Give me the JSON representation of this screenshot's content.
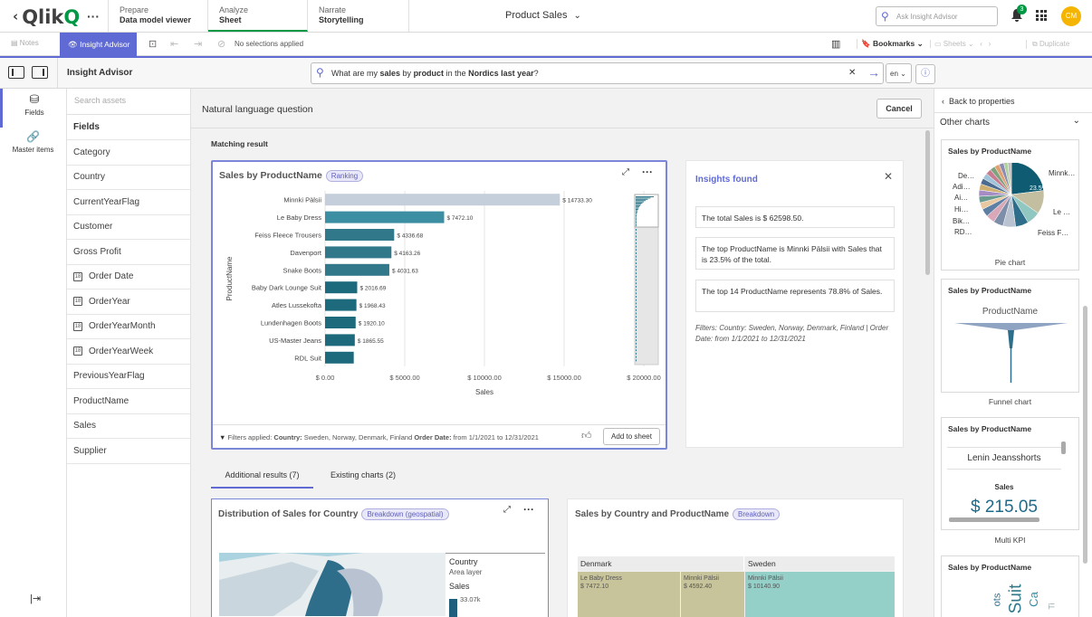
{
  "top": {
    "logo_text": "Qlik",
    "logo_q": "Q",
    "more_label": "···",
    "tabs": [
      {
        "label": "Prepare",
        "sub": "Data model viewer"
      },
      {
        "label": "Analyze",
        "sub": "Sheet"
      },
      {
        "label": "Narrate",
        "sub": "Storytelling"
      }
    ],
    "app_title": "Product Sales",
    "search_placeholder": "Ask Insight Advisor",
    "notification_count": "3",
    "avatar_initials": "CM"
  },
  "toolbar": {
    "notes": "Notes",
    "insight_advisor": "Insight Advisor",
    "no_selections": "No selections applied",
    "bookmarks": "Bookmarks",
    "sheets": "Sheets",
    "duplicate": "Duplicate"
  },
  "ia_bar": {
    "title": "Insight Advisor",
    "query_prefix": "What are my ",
    "query_b1": "sales",
    "query_mid1": " by ",
    "query_b2": "product",
    "query_mid2": " in the ",
    "query_b3": "Nordics",
    "query_mid3": " ",
    "query_b4": "last year",
    "query_suffix": "?",
    "lang": "en"
  },
  "rail": {
    "fields": "Fields",
    "master_items": "Master items"
  },
  "assets": {
    "search_placeholder": "Search assets",
    "header": "Fields",
    "items": [
      {
        "label": "Category",
        "date": false
      },
      {
        "label": "Country",
        "date": false
      },
      {
        "label": "CurrentYearFlag",
        "date": false
      },
      {
        "label": "Customer",
        "date": false
      },
      {
        "label": "Gross Profit",
        "date": false
      },
      {
        "label": "Order Date",
        "date": true
      },
      {
        "label": "OrderYear",
        "date": true
      },
      {
        "label": "OrderYearMonth",
        "date": true
      },
      {
        "label": "OrderYearWeek",
        "date": true
      },
      {
        "label": "PreviousYearFlag",
        "date": false
      },
      {
        "label": "ProductName",
        "date": false
      },
      {
        "label": "Sales",
        "date": false
      },
      {
        "label": "Supplier",
        "date": false
      }
    ]
  },
  "main": {
    "nlq_title": "Natural language question",
    "cancel": "Cancel",
    "matching": "Matching result",
    "chart_title": "Sales by ProductName",
    "chart_badge": "Ranking",
    "filters_label": "Filters applied:",
    "filters_country_label": "Country:",
    "filters_country_value": " Sweden, Norway, Denmark, Finland ",
    "filters_date_label": "Order Date:",
    "filters_date_value": " from 1/1/2021 to 12/31/2021",
    "add_to_sheet": "Add to sheet",
    "insights_title": "Insights found",
    "insights": [
      "The total Sales is $ 62598.50.",
      "The top ProductName is Minnki Pälsii with Sales that is 23.5% of the total.",
      "The top 14 ProductName represents 78.8% of Sales."
    ],
    "insights_filter": "Filters: Country: Sweden, Norway, Denmark, Finland | Order Date: from 1/1/2021 to 12/31/2021",
    "tab_additional": "Additional results (7)",
    "tab_existing": "Existing charts (2)",
    "card2_title": "Distribution of Sales for Country",
    "card2_badge": "Breakdown (geospatial)",
    "map_legend_country": "Country",
    "map_legend_layer": "Area layer",
    "map_legend_sales": "Sales",
    "map_legend_value": "33.07k",
    "card3_title": "Sales by Country and ProductName",
    "card3_badge": "Breakdown",
    "treemap": {
      "denmark": "Denmark",
      "sweden": "Sweden",
      "cells": [
        {
          "name": "Le Baby Dress",
          "value": "$ 7472.10"
        },
        {
          "name": "Minnki Pälsii",
          "value": "$ 4592.40"
        },
        {
          "name": "Minnki Pälsii",
          "value": "$ 10140.90"
        }
      ]
    }
  },
  "chart_data": {
    "type": "bar",
    "title": "Sales by ProductName",
    "xlabel": "Sales",
    "ylabel": "ProductName",
    "categories": [
      "Minnki Pälsii",
      "Le Baby Dress",
      "Feiss Fleece Trousers",
      "Davenport",
      "Snake Boots",
      "Baby Dark Lounge Suit",
      "Atles Lussekofta",
      "Lundenhagen Boots",
      "US-Master Jeans",
      "RDL Suit"
    ],
    "values": [
      14733.3,
      7472.1,
      4336.68,
      4163.26,
      4031.63,
      2016.69,
      1968.43,
      1920.1,
      1865.55,
      1800
    ],
    "labels": [
      "$ 14733.30",
      "$ 7472.10",
      "$ 4336.68",
      "$ 4163.26",
      "$ 4031.63",
      "$ 2016.69",
      "$ 1968.43",
      "$ 1920.10",
      "$ 1865.55",
      ""
    ],
    "xticks": [
      "$ 0.00",
      "$ 5000.00",
      "$ 10000.00",
      "$ 15000.00",
      "$ 20000.00"
    ],
    "xlim": [
      0,
      20000
    ],
    "colors": {
      "highlight": "#c5cfdb",
      "bar": "#31788a",
      "bar2": "#3c8fa3",
      "bar3": "#1e6a7d"
    }
  },
  "right": {
    "back": "Back to properties",
    "other_charts": "Other charts",
    "thumbs": [
      {
        "title": "Sales by ProductName",
        "caption": "Pie chart"
      },
      {
        "title": "Sales by ProductName",
        "caption": "Funnel chart"
      },
      {
        "title": "Sales by ProductName",
        "caption": "Multi KPI"
      },
      {
        "title": "Sales by ProductName",
        "caption": ""
      }
    ],
    "pie_labels": [
      "Minnk…",
      "De…",
      "Adi…",
      "Ai…",
      "Hi…",
      "Bik…",
      "RD…",
      "Le …",
      "Feiss F…"
    ],
    "pie_center": "23.5%",
    "funnel_label": "ProductName",
    "kpi_name": "Lenin Jeansshorts",
    "kpi_measure": "Sales",
    "kpi_value": "$ 215.05",
    "wordcloud": [
      "Suit",
      "Ca",
      "ots",
      "Ti"
    ]
  }
}
